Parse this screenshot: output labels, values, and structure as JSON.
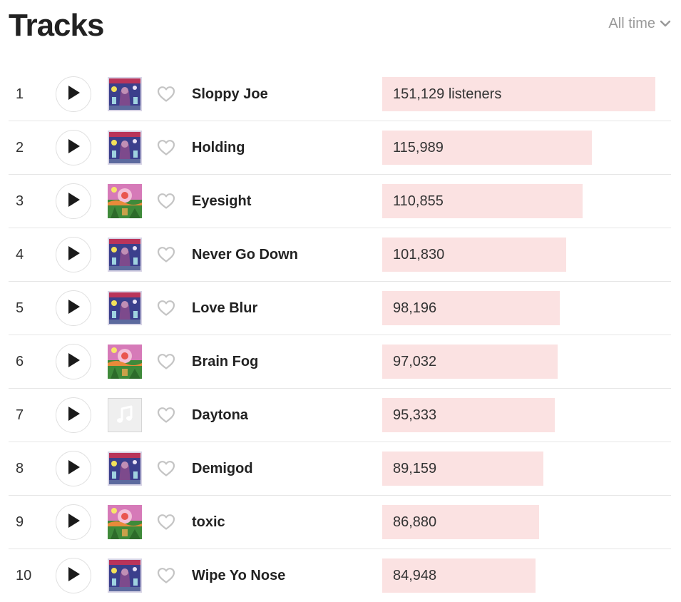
{
  "header": {
    "title": "Tracks",
    "period_label": "All time",
    "period_icon": "chevron-down-icon"
  },
  "colors": {
    "bar_fill": "#fbe2e2",
    "text": "#222222",
    "muted": "#999999",
    "divider": "#e6e6e6"
  },
  "max_listeners": 151129,
  "tracks": [
    {
      "rank": "1",
      "name": "Sloppy Joe",
      "listeners": 151129,
      "listeners_label": "151,129 listeners",
      "art": "album-a"
    },
    {
      "rank": "2",
      "name": "Holding",
      "listeners": 115989,
      "listeners_label": "115,989",
      "art": "album-a"
    },
    {
      "rank": "3",
      "name": "Eyesight",
      "listeners": 110855,
      "listeners_label": "110,855",
      "art": "album-b"
    },
    {
      "rank": "4",
      "name": "Never Go Down",
      "listeners": 101830,
      "listeners_label": "101,830",
      "art": "album-a"
    },
    {
      "rank": "5",
      "name": "Love Blur",
      "listeners": 98196,
      "listeners_label": "98,196",
      "art": "album-a"
    },
    {
      "rank": "6",
      "name": "Brain Fog",
      "listeners": 97032,
      "listeners_label": "97,032",
      "art": "album-b"
    },
    {
      "rank": "7",
      "name": "Daytona",
      "listeners": 95333,
      "listeners_label": "95,333",
      "art": "placeholder"
    },
    {
      "rank": "8",
      "name": "Demigod",
      "listeners": 89159,
      "listeners_label": "89,159",
      "art": "album-a"
    },
    {
      "rank": "9",
      "name": "toxic",
      "listeners": 86880,
      "listeners_label": "86,880",
      "art": "album-b"
    },
    {
      "rank": "10",
      "name": "Wipe Yo Nose",
      "listeners": 84948,
      "listeners_label": "84,948",
      "art": "album-a"
    }
  ]
}
